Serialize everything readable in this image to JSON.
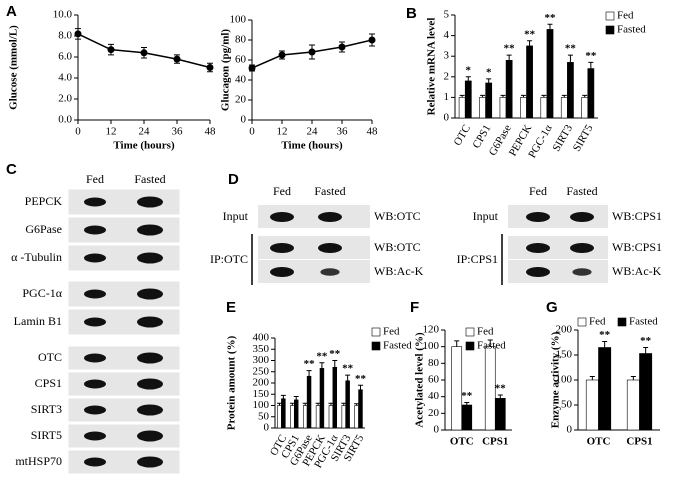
{
  "panel_labels": [
    "A",
    "B",
    "C",
    "D",
    "E",
    "F",
    "G"
  ],
  "chart_data": [
    {
      "type": "line",
      "ylabel": "Glucose (mmol/L)",
      "xlabel": "Time (hours)",
      "x": [
        0,
        12,
        24,
        36,
        48
      ],
      "series": [
        {
          "color": "#000000",
          "values": [
            8.2,
            6.7,
            6.4,
            5.8,
            5.0
          ],
          "errors": [
            0.5,
            0.5,
            0.5,
            0.4,
            0.4
          ]
        }
      ],
      "xlim": [
        0,
        48
      ],
      "xticks": [
        0,
        12,
        24,
        36,
        48
      ],
      "ylim": [
        0,
        10
      ],
      "yticks": [
        {
          "value": 0,
          "label": "0.0"
        },
        {
          "value": 2,
          "label": "2.0"
        },
        {
          "value": 4,
          "label": "4.0"
        },
        {
          "value": 6,
          "label": "6.0"
        },
        {
          "value": 8,
          "label": "8.0"
        },
        {
          "value": 10,
          "label": "10.0"
        }
      ]
    },
    {
      "type": "line",
      "ylabel": "Glucagon (pg/ml)",
      "xlabel": "Time (hours)",
      "x": [
        0,
        12,
        24,
        36,
        48
      ],
      "series": [
        {
          "color": "#000000",
          "values": [
            52,
            65,
            68,
            73,
            80
          ],
          "errors": [
            3,
            4,
            7,
            5,
            6
          ]
        }
      ],
      "xlim": [
        0,
        48
      ],
      "xticks": [
        0,
        12,
        24,
        36,
        48
      ],
      "ylim": [
        0,
        100
      ],
      "yticks": [
        0,
        20,
        40,
        60,
        80,
        100
      ]
    },
    {
      "type": "bar",
      "ylabel": "Relative mRNA level",
      "categories": [
        "OTC",
        "CPS1",
        "G6Pase",
        "PEPCK",
        "PGC-1α",
        "SIRT3",
        "SIRT5"
      ],
      "series": [
        {
          "name": "Fed",
          "color": "#ffffff",
          "values": [
            1,
            1,
            1,
            1,
            1,
            1,
            1
          ],
          "errors": [
            0.1,
            0.1,
            0.1,
            0.1,
            0.1,
            0.1,
            0.1
          ]
        },
        {
          "name": "Fasted",
          "color": "#000000",
          "values": [
            1.8,
            1.7,
            2.8,
            3.5,
            4.3,
            2.7,
            2.4
          ],
          "errors": [
            0.2,
            0.2,
            0.25,
            0.25,
            0.25,
            0.35,
            0.3
          ],
          "annotations": [
            "*",
            "*",
            "**",
            "**",
            "**",
            "**",
            "**"
          ]
        }
      ],
      "ylim": [
        0,
        5
      ],
      "yticks": [
        0,
        1,
        2,
        3,
        4,
        5
      ]
    },
    {
      "type": "bar",
      "ylabel": "Protein amount (%)",
      "categories": [
        "OTC",
        "CPS1",
        "G6Pase",
        "PEPCK",
        "PGC-1α",
        "SIRT3",
        "SIRT5"
      ],
      "series": [
        {
          "name": "Fed",
          "color": "#ffffff",
          "values": [
            100,
            100,
            100,
            100,
            100,
            100,
            100
          ],
          "errors": [
            10,
            10,
            10,
            10,
            10,
            10,
            8
          ]
        },
        {
          "name": "Fasted",
          "color": "#000000",
          "values": [
            130,
            125,
            230,
            265,
            270,
            210,
            170
          ],
          "errors": [
            15,
            15,
            25,
            25,
            30,
            25,
            20
          ],
          "annotations": [
            null,
            null,
            "**",
            "**",
            "**",
            "**",
            "**"
          ]
        }
      ],
      "ylim": [
        0,
        400
      ],
      "yticks": [
        0,
        50,
        100,
        150,
        200,
        250,
        300,
        350,
        400
      ]
    },
    {
      "type": "bar",
      "ylabel": "Acetylated level (%)",
      "categories": [
        "OTC",
        "CPS1"
      ],
      "series": [
        {
          "name": "Fed",
          "color": "#ffffff",
          "values": [
            100,
            100
          ],
          "errors": [
            7,
            8
          ]
        },
        {
          "name": "Fasted",
          "color": "#000000",
          "values": [
            30,
            38
          ],
          "errors": [
            3,
            4
          ],
          "annotations": [
            "**",
            "**"
          ]
        }
      ],
      "ylim": [
        0,
        120
      ],
      "yticks": [
        0,
        20,
        40,
        60,
        80,
        100,
        120
      ]
    },
    {
      "type": "bar",
      "ylabel": "Enzyme activity (%)",
      "categories": [
        "OTC",
        "CPS1"
      ],
      "series": [
        {
          "name": "Fed",
          "color": "#ffffff",
          "values": [
            100,
            100
          ],
          "errors": [
            7,
            7
          ]
        },
        {
          "name": "Fasted",
          "color": "#000000",
          "values": [
            165,
            153
          ],
          "errors": [
            12,
            12
          ],
          "annotations": [
            "**",
            "**"
          ]
        }
      ],
      "ylim": [
        0,
        200
      ],
      "yticks": [
        0,
        50,
        100,
        150,
        200
      ]
    }
  ],
  "blot_c": {
    "columns": [
      "Fed",
      "Fasted"
    ],
    "groups": [
      [
        "PEPCK",
        "G6Pase",
        "α -Tubulin"
      ],
      [
        "PGC-1α",
        "Lamin B1"
      ],
      [
        "OTC",
        "CPS1",
        "SIRT3",
        "SIRT5",
        "mtHSP70"
      ]
    ]
  },
  "blot_d": [
    {
      "columns": [
        "Fed",
        "Fasted"
      ],
      "input_label": "Input",
      "input_wb": "WB:OTC",
      "ip_label": "IP:OTC",
      "ip_wb": [
        "WB:OTC",
        "WB:Ac-K"
      ]
    },
    {
      "columns": [
        "Fed",
        "Fasted"
      ],
      "input_label": "Input",
      "input_wb": "WB:CPS1",
      "ip_label": "IP:CPS1",
      "ip_wb": [
        "WB:CPS1",
        "WB:Ac-K"
      ]
    }
  ]
}
